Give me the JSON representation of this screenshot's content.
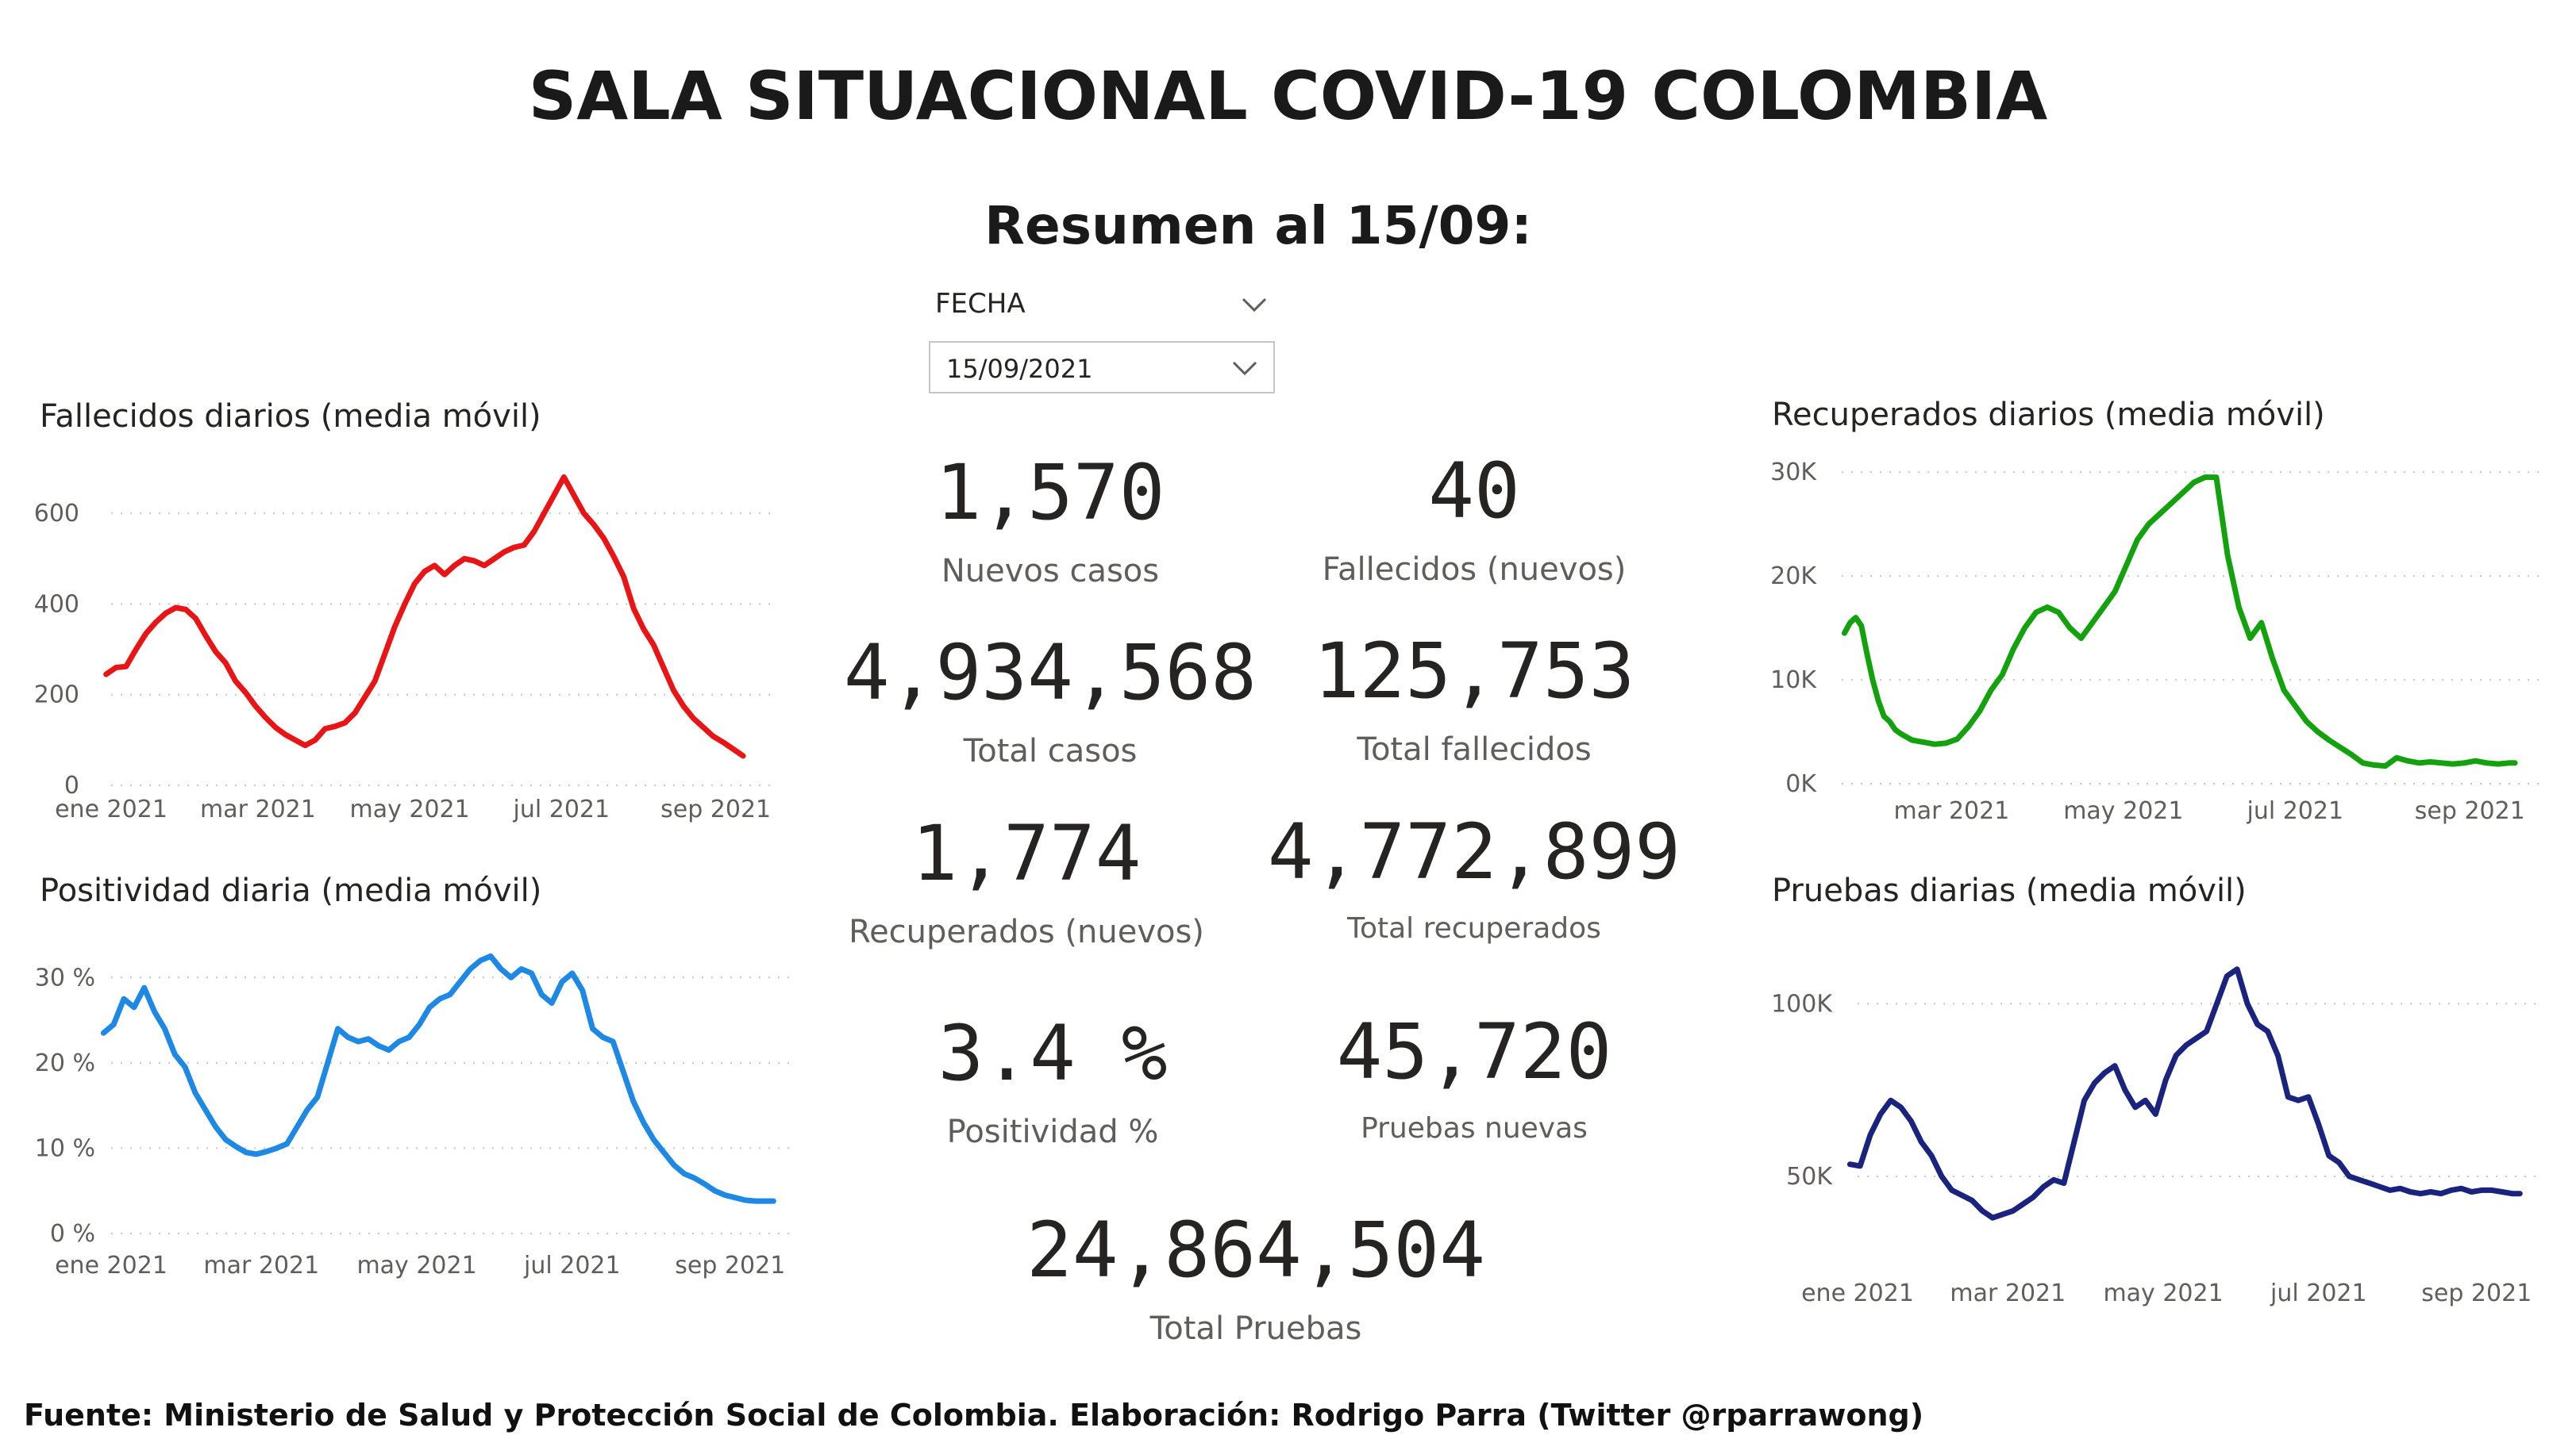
{
  "header": {
    "title": "SALA SITUACIONAL COVID-19 COLOMBIA",
    "subtitle": "Resumen al 15/09:"
  },
  "slicer": {
    "label": "FECHA",
    "value": "15/09/2021",
    "icon": "chevron-down-icon"
  },
  "kpis": [
    {
      "value": "1,570",
      "label": "Nuevos casos"
    },
    {
      "value": "40",
      "label": "Fallecidos (nuevos)"
    },
    {
      "value": "4,934,568",
      "label": "Total casos"
    },
    {
      "value": "125,753",
      "label": "Total fallecidos"
    },
    {
      "value": "1,774",
      "label": "Recuperados (nuevos)"
    },
    {
      "value": "4,772,899",
      "label": "Total recuperados"
    },
    {
      "value": "3.4 %",
      "label": "Positividad %"
    },
    {
      "value": "45,720",
      "label": "Pruebas nuevas"
    },
    {
      "value": "24,864,504",
      "label": "Total Pruebas"
    }
  ],
  "footer": "Fuente: Ministerio de Salud y Protección Social de Colombia. Elaboración: Rodrigo Parra (Twitter @rparrawong)",
  "chart_data": [
    {
      "id": "deaths",
      "type": "line",
      "title": "Fallecidos diarios (media móvil)",
      "color": "#e81416",
      "grid": true,
      "ylim": [
        0,
        700
      ],
      "yticks": [
        0,
        200,
        400,
        600
      ],
      "yticklabels": [
        "0",
        "200",
        "400",
        "600"
      ],
      "xlim": [
        0,
        268
      ],
      "xticks": [
        0,
        59,
        120,
        181,
        243
      ],
      "xticklabels": [
        "ene 2021",
        "mar 2021",
        "may 2021",
        "jul 2021",
        "sep 2021"
      ],
      "x": [
        -2,
        2,
        6,
        10,
        14,
        18,
        22,
        26,
        30,
        34,
        38,
        42,
        46,
        50,
        54,
        58,
        62,
        66,
        70,
        74,
        78,
        82,
        86,
        90,
        94,
        98,
        102,
        106,
        110,
        114,
        118,
        122,
        126,
        130,
        134,
        138,
        142,
        146,
        150,
        154,
        158,
        162,
        166,
        170,
        174,
        178,
        182,
        186,
        190,
        194,
        198,
        202,
        206,
        210,
        214,
        218,
        222,
        226,
        230,
        234,
        238,
        242,
        246,
        250,
        254
      ],
      "values": [
        245,
        260,
        262,
        300,
        335,
        360,
        380,
        392,
        388,
        368,
        330,
        295,
        270,
        230,
        205,
        175,
        150,
        128,
        112,
        100,
        88,
        100,
        125,
        130,
        138,
        160,
        195,
        230,
        290,
        350,
        400,
        445,
        472,
        485,
        465,
        485,
        500,
        495,
        485,
        500,
        515,
        525,
        530,
        560,
        600,
        640,
        680,
        640,
        600,
        575,
        545,
        505,
        460,
        390,
        345,
        310,
        260,
        210,
        175,
        148,
        128,
        108,
        95,
        80,
        65
      ]
    },
    {
      "id": "positivity",
      "type": "line",
      "title": "Positividad diaria (media móvil)",
      "color": "#1e88e5",
      "grid": true,
      "ylim": [
        0,
        33
      ],
      "yticks": [
        0,
        10,
        20,
        30
      ],
      "yticklabels": [
        "0 %",
        "10 %",
        "20 %",
        "30 %"
      ],
      "xlim": [
        0,
        268
      ],
      "xticks": [
        0,
        59,
        120,
        181,
        243
      ],
      "xticklabels": [
        "ene 2021",
        "mar 2021",
        "may 2021",
        "jul 2021",
        "sep 2021"
      ],
      "x": [
        -3,
        1,
        5,
        9,
        13,
        17,
        21,
        25,
        29,
        33,
        37,
        41,
        45,
        49,
        53,
        57,
        61,
        65,
        69,
        73,
        77,
        81,
        85,
        89,
        93,
        97,
        101,
        105,
        109,
        113,
        117,
        121,
        125,
        129,
        133,
        137,
        141,
        145,
        149,
        153,
        157,
        161,
        165,
        169,
        173,
        177,
        181,
        185,
        189,
        193,
        197,
        201,
        205,
        209,
        213,
        217,
        221,
        225,
        229,
        233,
        237,
        241,
        245,
        249,
        253,
        257,
        260
      ],
      "values": [
        23.5,
        24.5,
        27.5,
        26.5,
        28.8,
        26.0,
        24.0,
        21.0,
        19.5,
        16.5,
        14.5,
        12.5,
        11.0,
        10.2,
        9.5,
        9.3,
        9.6,
        10.0,
        10.5,
        12.5,
        14.5,
        16.0,
        20.0,
        24.0,
        23.0,
        22.5,
        22.8,
        22.0,
        21.5,
        22.5,
        23.0,
        24.5,
        26.5,
        27.5,
        28.0,
        29.5,
        31.0,
        32.0,
        32.5,
        31.0,
        30.0,
        31.0,
        30.5,
        28.0,
        27.0,
        29.5,
        30.5,
        28.5,
        24.0,
        23.0,
        22.5,
        19.0,
        15.5,
        13.0,
        11.0,
        9.5,
        8.0,
        7.0,
        6.5,
        5.8,
        5.0,
        4.5,
        4.2,
        3.9,
        3.8,
        3.8,
        3.8
      ]
    },
    {
      "id": "recovered",
      "type": "line",
      "title": "Recuperados diarios (media móvil)",
      "color": "#13a10e",
      "grid": true,
      "ylim": [
        0,
        31000
      ],
      "yticks": [
        0,
        10000,
        20000,
        30000
      ],
      "yticklabels": [
        "0K",
        "10K",
        "20K",
        "30K"
      ],
      "xlim": [
        20,
        268
      ],
      "xticks": [
        59,
        120,
        181,
        243
      ],
      "xticklabels": [
        "mar 2021",
        "may 2021",
        "jul 2021",
        "sep 2021"
      ],
      "x": [
        21,
        23,
        25,
        27,
        29,
        31,
        33,
        35,
        37,
        39,
        41,
        43,
        45,
        49,
        53,
        57,
        61,
        65,
        69,
        73,
        77,
        81,
        85,
        89,
        93,
        97,
        101,
        105,
        109,
        113,
        117,
        121,
        125,
        129,
        133,
        137,
        141,
        145,
        149,
        153,
        157,
        161,
        165,
        169,
        173,
        177,
        181,
        185,
        189,
        193,
        197,
        201,
        205,
        209,
        213,
        217,
        221,
        225,
        229,
        233,
        237,
        241,
        245,
        249,
        253,
        257,
        259
      ],
      "values": [
        14500,
        15500,
        16000,
        15200,
        12500,
        10000,
        8000,
        6500,
        6000,
        5200,
        4800,
        4500,
        4200,
        4000,
        3800,
        3900,
        4300,
        5500,
        7000,
        9000,
        10500,
        13000,
        15000,
        16500,
        17000,
        16500,
        15000,
        14000,
        15500,
        17000,
        18500,
        21000,
        23500,
        25000,
        26000,
        27000,
        28000,
        29000,
        29500,
        29500,
        22000,
        17000,
        14000,
        15500,
        12000,
        9000,
        7500,
        6000,
        5000,
        4200,
        3500,
        2800,
        2000,
        1800,
        1700,
        2500,
        2200,
        2000,
        2100,
        2000,
        1900,
        2000,
        2200,
        2000,
        1900,
        2000,
        2000
      ]
    },
    {
      "id": "tests",
      "type": "line",
      "title": "Pruebas diarias (media móvil)",
      "color": "#1a237e",
      "grid": true,
      "ylim": [
        30000,
        115000
      ],
      "yticks": [
        50000,
        100000
      ],
      "yticklabels": [
        "50K",
        "100K"
      ],
      "xlim": [
        0,
        268
      ],
      "xticks": [
        0,
        59,
        120,
        181,
        243
      ],
      "xticklabels": [
        "ene 2021",
        "mar 2021",
        "may 2021",
        "jul 2021",
        "sep 2021"
      ],
      "x": [
        -3,
        1,
        5,
        9,
        13,
        17,
        21,
        25,
        29,
        33,
        37,
        41,
        45,
        49,
        53,
        57,
        61,
        65,
        69,
        73,
        77,
        81,
        85,
        89,
        93,
        97,
        101,
        105,
        109,
        113,
        117,
        121,
        125,
        129,
        133,
        137,
        141,
        145,
        149,
        153,
        157,
        161,
        165,
        169,
        173,
        177,
        181,
        185,
        189,
        193,
        197,
        201,
        205,
        209,
        213,
        217,
        221,
        225,
        229,
        233,
        237,
        241,
        245,
        249,
        253,
        257,
        260
      ],
      "values": [
        53500,
        53000,
        62000,
        68000,
        72000,
        70000,
        66000,
        60000,
        56000,
        50000,
        46000,
        44500,
        43000,
        40000,
        38000,
        39000,
        40000,
        42000,
        44000,
        47000,
        49000,
        48000,
        60000,
        72000,
        77000,
        80000,
        82000,
        75000,
        70000,
        72000,
        68000,
        78000,
        85000,
        88000,
        90000,
        92000,
        100000,
        108000,
        110000,
        100000,
        94000,
        92000,
        85000,
        73000,
        72000,
        73000,
        65000,
        56000,
        54000,
        50000,
        49000,
        48000,
        47000,
        46000,
        46500,
        45500,
        45000,
        45500,
        45000,
        46000,
        46500,
        45500,
        46000,
        46000,
        45500,
        45000,
        45000
      ]
    }
  ]
}
